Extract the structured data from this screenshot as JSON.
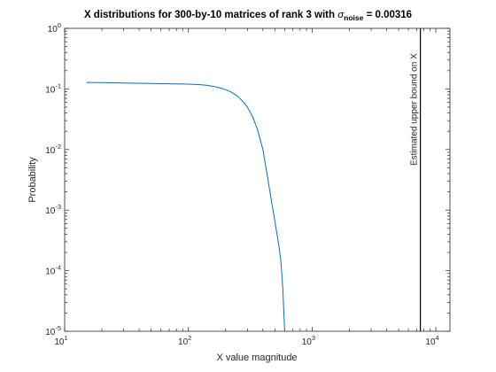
{
  "chart_data": {
    "type": "line",
    "title_parts": {
      "main": "X distributions for 300-by-10  matrices of rank 3 with ",
      "sigma": "σ",
      "subscript": "noise",
      "suffix": " = 0.00316"
    },
    "xlabel": "X value magnitude",
    "ylabel": "Probability",
    "xscale": "log",
    "yscale": "log",
    "xlim": [
      10,
      13000
    ],
    "ylim": [
      1e-05,
      1
    ],
    "xticks": [
      {
        "value": 10,
        "base": "10",
        "exp": "1"
      },
      {
        "value": 100,
        "base": "10",
        "exp": "2"
      },
      {
        "value": 1000,
        "base": "10",
        "exp": "3"
      },
      {
        "value": 10000,
        "base": "10",
        "exp": "4"
      }
    ],
    "yticks": [
      {
        "value": 1e-05,
        "base": "10",
        "exp": "-5"
      },
      {
        "value": 0.0001,
        "base": "10",
        "exp": "-4"
      },
      {
        "value": 0.001,
        "base": "10",
        "exp": "-3"
      },
      {
        "value": 0.01,
        "base": "10",
        "exp": "-2"
      },
      {
        "value": 0.1,
        "base": "10",
        "exp": "-1"
      },
      {
        "value": 1,
        "base": "10",
        "exp": "0"
      }
    ],
    "grid": false,
    "series": [
      {
        "color": "#0072bd",
        "x": [
          15,
          20,
          30,
          50,
          80,
          100,
          120,
          140,
          160,
          180,
          200,
          220,
          250,
          280,
          300,
          330,
          360,
          400,
          430,
          460,
          490,
          520,
          540,
          560,
          580,
          590,
          600
        ],
        "y": [
          0.128,
          0.127,
          0.125,
          0.123,
          0.121,
          0.12,
          0.118,
          0.115,
          0.11,
          0.104,
          0.097,
          0.09,
          0.076,
          0.06,
          0.05,
          0.035,
          0.022,
          0.01,
          0.0042,
          0.0018,
          0.00085,
          0.0004,
          0.00025,
          0.00014,
          5e-05,
          2.2e-05,
          1e-05
        ]
      }
    ],
    "vline": {
      "x": 7500,
      "color": "#000000",
      "label": "Estimated upper bound on X"
    }
  }
}
